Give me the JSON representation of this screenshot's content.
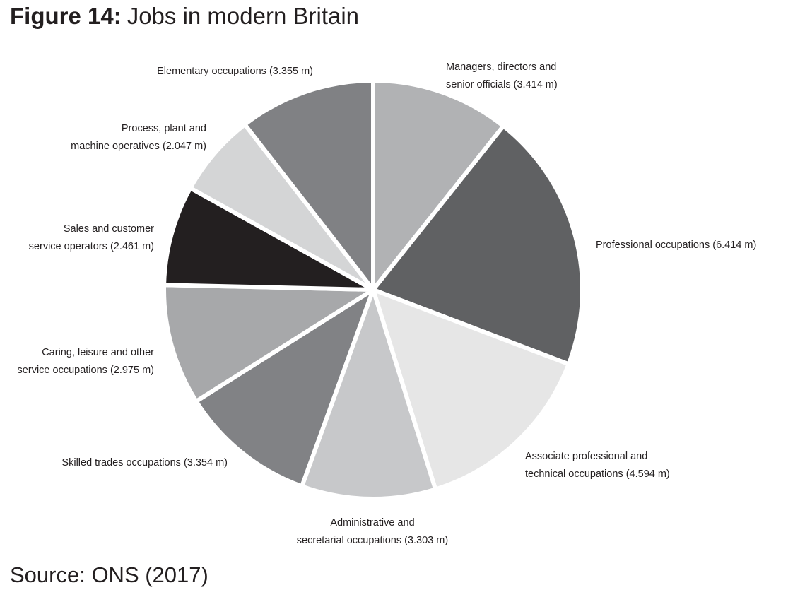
{
  "chart_data": {
    "type": "pie",
    "figure_label": "Figure 14:",
    "title": "Jobs in modern Britain",
    "source": "Source: ONS (2017)",
    "categories": [
      "Managers, directors and\nsenior officials",
      "Professional occupations",
      "Associate professional and\ntechnical occupations",
      "Administrative and\nsecretarial occupations",
      "Skilled trades occupations",
      "Caring, leisure and other\nservice occupations",
      "Sales and customer\nservice operators",
      "Process, plant and\nmachine operatives",
      "Elementary occupations"
    ],
    "values": [
      3.414,
      6.414,
      4.594,
      3.303,
      3.354,
      2.975,
      2.461,
      2.047,
      3.355
    ],
    "value_labels": [
      "(3.414 m)",
      "(6.414 m)",
      "(4.594 m)",
      "(3.303 m)",
      "(3.354 m)",
      "(2.975 m)",
      "(2.461 m)",
      "(2.047 m)",
      "(3.355 m)"
    ],
    "colors": [
      "#b1b2b4",
      "#606163",
      "#e6e6e6",
      "#c7c8ca",
      "#818285",
      "#a7a8aa",
      "#231f20",
      "#d4d5d6",
      "#808184"
    ]
  }
}
